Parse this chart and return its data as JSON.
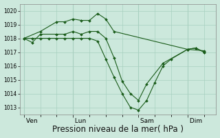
{
  "bg_color": "#cce8dc",
  "grid_color": "#a8d0c0",
  "line_color": "#1a5c1a",
  "marker_color": "#1a5c1a",
  "xlabel": "Pression niveau de la mer( hPa )",
  "xlabel_fontsize": 8.5,
  "ylim": [
    1012.5,
    1020.5
  ],
  "yticks": [
    1013,
    1014,
    1015,
    1016,
    1017,
    1018,
    1019,
    1020
  ],
  "xtick_labels": [
    " Ven",
    " Lun",
    " Sam",
    " Dim"
  ],
  "xtick_positions": [
    0,
    24,
    56,
    80
  ],
  "xlim": [
    -2,
    94
  ],
  "series": [
    {
      "x": [
        0,
        8,
        16,
        20,
        24,
        28,
        32,
        36,
        40,
        44,
        80,
        88
      ],
      "y": [
        1018.0,
        1018.5,
        1019.2,
        1019.2,
        1019.4,
        1019.3,
        1019.3,
        1019.8,
        1019.4,
        1018.5,
        1017.2,
        1017.1
      ]
    },
    {
      "x": [
        0,
        4,
        8,
        16,
        20,
        24,
        28,
        32,
        36,
        40,
        44,
        48,
        52,
        56,
        60,
        68,
        80,
        84,
        88
      ],
      "y": [
        1018.0,
        1017.7,
        1018.3,
        1018.3,
        1018.3,
        1018.5,
        1018.3,
        1018.5,
        1018.5,
        1018.0,
        1016.6,
        1014.9,
        1014.0,
        1013.5,
        1014.7,
        1016.2,
        1017.2,
        1017.3,
        1017.0
      ]
    },
    {
      "x": [
        0,
        4,
        8,
        12,
        16,
        20,
        24,
        28,
        32,
        36,
        40,
        44,
        48,
        52,
        56,
        60,
        64,
        68,
        72,
        80,
        84,
        88
      ],
      "y": [
        1018.0,
        1018.0,
        1018.0,
        1018.0,
        1018.0,
        1018.0,
        1018.0,
        1018.0,
        1018.0,
        1017.8,
        1016.5,
        1015.2,
        1014.0,
        1013.0,
        1012.8,
        1013.5,
        1014.8,
        1016.0,
        1016.5,
        1017.2,
        1017.3,
        1017.0
      ]
    }
  ]
}
